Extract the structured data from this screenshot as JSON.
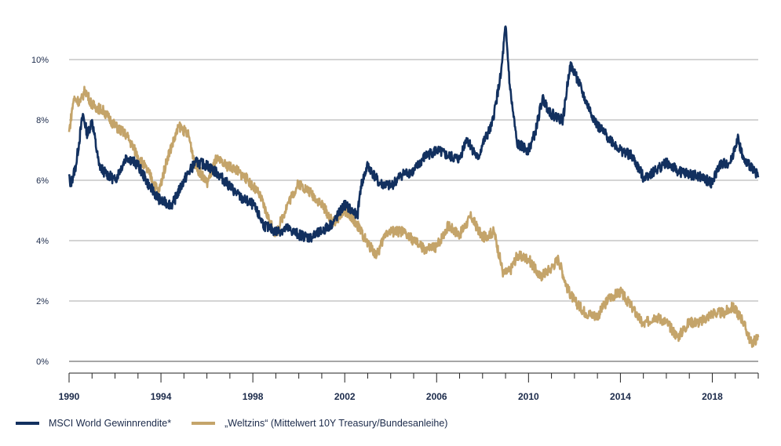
{
  "chart_data": {
    "type": "line",
    "title": "",
    "xlabel": "",
    "ylabel": "",
    "xlim": [
      1990,
      2020
    ],
    "ylim": [
      0,
      10
    ],
    "x_ticks": [
      "1990",
      "1994",
      "1998",
      "2002",
      "2006",
      "2010",
      "2014",
      "2018"
    ],
    "y_ticks": [
      "0%",
      "2%",
      "4%",
      "6%",
      "8%",
      "10%"
    ],
    "grid": "horizontal",
    "legend": "bottom-left",
    "series": [
      {
        "name": "MSCI World Gewinnrendite*",
        "color": "#12305f",
        "points": [
          [
            1990.0,
            6.2
          ],
          [
            1990.05,
            5.8
          ],
          [
            1990.3,
            6.5
          ],
          [
            1990.6,
            8.2
          ],
          [
            1990.8,
            7.5
          ],
          [
            1991.0,
            8.0
          ],
          [
            1991.3,
            6.5
          ],
          [
            1991.5,
            6.3
          ],
          [
            1992.0,
            6.0
          ],
          [
            1992.5,
            6.8
          ],
          [
            1993.0,
            6.5
          ],
          [
            1993.5,
            5.8
          ],
          [
            1994.0,
            5.3
          ],
          [
            1994.5,
            5.2
          ],
          [
            1995.0,
            6.0
          ],
          [
            1995.5,
            6.6
          ],
          [
            1996.0,
            6.5
          ],
          [
            1996.5,
            6.2
          ],
          [
            1997.0,
            5.8
          ],
          [
            1997.5,
            5.4
          ],
          [
            1998.0,
            5.2
          ],
          [
            1998.5,
            4.5
          ],
          [
            1999.0,
            4.3
          ],
          [
            1999.5,
            4.4
          ],
          [
            2000.0,
            4.2
          ],
          [
            2000.5,
            4.1
          ],
          [
            2001.0,
            4.3
          ],
          [
            2001.5,
            4.6
          ],
          [
            2002.0,
            5.2
          ],
          [
            2002.3,
            5.0
          ],
          [
            2002.55,
            4.8
          ],
          [
            2002.7,
            5.8
          ],
          [
            2003.0,
            6.5
          ],
          [
            2003.5,
            5.9
          ],
          [
            2004.0,
            5.8
          ],
          [
            2004.5,
            6.2
          ],
          [
            2005.0,
            6.3
          ],
          [
            2005.5,
            6.8
          ],
          [
            2006.0,
            7.0
          ],
          [
            2006.5,
            6.8
          ],
          [
            2007.0,
            6.7
          ],
          [
            2007.3,
            7.4
          ],
          [
            2007.8,
            6.7
          ],
          [
            2008.0,
            7.2
          ],
          [
            2008.4,
            7.8
          ],
          [
            2008.8,
            9.5
          ],
          [
            2009.0,
            11.1
          ],
          [
            2009.2,
            9.0
          ],
          [
            2009.5,
            7.2
          ],
          [
            2010.0,
            7.0
          ],
          [
            2010.3,
            7.6
          ],
          [
            2010.6,
            8.7
          ],
          [
            2011.0,
            8.2
          ],
          [
            2011.5,
            8.0
          ],
          [
            2011.8,
            9.8
          ],
          [
            2012.0,
            9.6
          ],
          [
            2012.5,
            8.6
          ],
          [
            2013.0,
            7.8
          ],
          [
            2013.5,
            7.4
          ],
          [
            2014.0,
            7.0
          ],
          [
            2014.5,
            6.8
          ],
          [
            2015.0,
            6.1
          ],
          [
            2015.5,
            6.3
          ],
          [
            2016.0,
            6.6
          ],
          [
            2016.5,
            6.3
          ],
          [
            2017.0,
            6.2
          ],
          [
            2017.5,
            6.1
          ],
          [
            2018.0,
            5.9
          ],
          [
            2018.3,
            6.5
          ],
          [
            2018.8,
            6.6
          ],
          [
            2019.1,
            7.4
          ],
          [
            2019.4,
            6.6
          ],
          [
            2019.8,
            6.4
          ],
          [
            2020.0,
            6.1
          ]
        ]
      },
      {
        "name": "„Weltzins“ (Mittelwert 10Y Treasury/Bundesanleihe)",
        "color": "#c4a46a",
        "points": [
          [
            1990.0,
            7.6
          ],
          [
            1990.2,
            8.7
          ],
          [
            1990.5,
            8.6
          ],
          [
            1990.7,
            9.0
          ],
          [
            1991.0,
            8.5
          ],
          [
            1991.5,
            8.3
          ],
          [
            1992.0,
            7.8
          ],
          [
            1992.5,
            7.5
          ],
          [
            1993.0,
            6.8
          ],
          [
            1993.5,
            6.2
          ],
          [
            1993.9,
            5.6
          ],
          [
            1994.3,
            6.8
          ],
          [
            1994.8,
            7.8
          ],
          [
            1995.2,
            7.5
          ],
          [
            1995.5,
            6.5
          ],
          [
            1996.0,
            5.9
          ],
          [
            1996.4,
            6.7
          ],
          [
            1996.8,
            6.5
          ],
          [
            1997.2,
            6.4
          ],
          [
            1997.8,
            6.0
          ],
          [
            1998.3,
            5.5
          ],
          [
            1998.8,
            4.5
          ],
          [
            1999.0,
            4.2
          ],
          [
            1999.5,
            5.2
          ],
          [
            2000.0,
            5.9
          ],
          [
            2000.5,
            5.6
          ],
          [
            2001.0,
            5.2
          ],
          [
            2001.5,
            4.6
          ],
          [
            2002.0,
            5.0
          ],
          [
            2002.5,
            4.6
          ],
          [
            2003.0,
            3.9
          ],
          [
            2003.4,
            3.5
          ],
          [
            2003.8,
            4.3
          ],
          [
            2004.5,
            4.3
          ],
          [
            2005.0,
            4.0
          ],
          [
            2005.5,
            3.7
          ],
          [
            2006.0,
            3.8
          ],
          [
            2006.5,
            4.5
          ],
          [
            2007.0,
            4.2
          ],
          [
            2007.5,
            4.8
          ],
          [
            2008.0,
            4.1
          ],
          [
            2008.5,
            4.3
          ],
          [
            2008.9,
            2.9
          ],
          [
            2009.2,
            3.0
          ],
          [
            2009.5,
            3.5
          ],
          [
            2010.0,
            3.4
          ],
          [
            2010.5,
            2.8
          ],
          [
            2011.0,
            3.1
          ],
          [
            2011.3,
            3.4
          ],
          [
            2011.7,
            2.4
          ],
          [
            2012.0,
            2.0
          ],
          [
            2012.5,
            1.6
          ],
          [
            2013.0,
            1.5
          ],
          [
            2013.5,
            2.1
          ],
          [
            2014.0,
            2.3
          ],
          [
            2014.5,
            1.8
          ],
          [
            2015.0,
            1.2
          ],
          [
            2015.5,
            1.5
          ],
          [
            2016.0,
            1.3
          ],
          [
            2016.5,
            0.8
          ],
          [
            2017.0,
            1.3
          ],
          [
            2017.5,
            1.3
          ],
          [
            2018.0,
            1.6
          ],
          [
            2018.5,
            1.6
          ],
          [
            2018.9,
            1.8
          ],
          [
            2019.3,
            1.4
          ],
          [
            2019.7,
            0.6
          ],
          [
            2020.0,
            0.8
          ]
        ]
      }
    ]
  }
}
